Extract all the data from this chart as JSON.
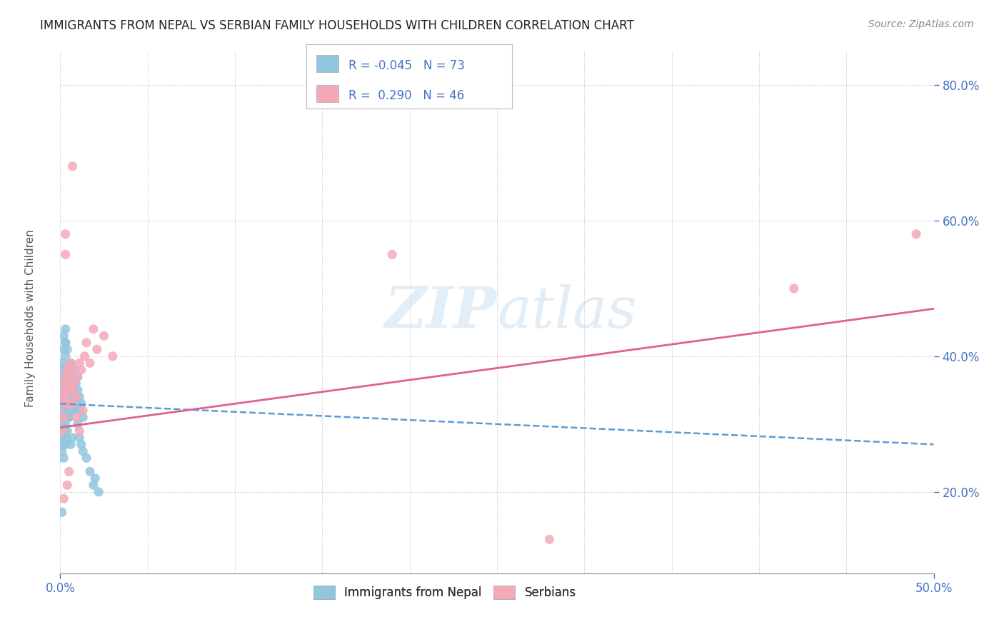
{
  "title": "IMMIGRANTS FROM NEPAL VS SERBIAN FAMILY HOUSEHOLDS WITH CHILDREN CORRELATION CHART",
  "source": "Source: ZipAtlas.com",
  "ylabel": "Family Households with Children",
  "xlim": [
    0.0,
    0.5
  ],
  "ylim": [
    0.08,
    0.85
  ],
  "x_tick_positions": [
    0.0,
    0.5
  ],
  "x_tick_labels": [
    "0.0%",
    "50.0%"
  ],
  "y_tick_positions": [
    0.2,
    0.4,
    0.6,
    0.8
  ],
  "y_tick_labels": [
    "20.0%",
    "40.0%",
    "60.0%",
    "80.0%"
  ],
  "nepal_color": "#92c5de",
  "serbia_color": "#f4a9b8",
  "nepal_line_color": "#5b9bd5",
  "serbia_line_color": "#e06090",
  "background_color": "#ffffff",
  "R_nepal": -0.045,
  "N_nepal": 73,
  "R_serbia": 0.29,
  "N_serbia": 46,
  "nepal_line_y0": 0.33,
  "nepal_line_y1": 0.27,
  "serbia_line_y0": 0.295,
  "serbia_line_y1": 0.47,
  "nepal_x": [
    0.001,
    0.001,
    0.001,
    0.001,
    0.001,
    0.002,
    0.002,
    0.002,
    0.002,
    0.002,
    0.002,
    0.003,
    0.003,
    0.003,
    0.003,
    0.003,
    0.004,
    0.004,
    0.004,
    0.004,
    0.005,
    0.005,
    0.005,
    0.005,
    0.006,
    0.006,
    0.006,
    0.007,
    0.007,
    0.008,
    0.008,
    0.008,
    0.009,
    0.009,
    0.01,
    0.01,
    0.011,
    0.011,
    0.012,
    0.013,
    0.001,
    0.001,
    0.002,
    0.002,
    0.003,
    0.003,
    0.004,
    0.005,
    0.006,
    0.007,
    0.001,
    0.002,
    0.002,
    0.003,
    0.003,
    0.004,
    0.005,
    0.006,
    0.007,
    0.008,
    0.009,
    0.01,
    0.011,
    0.012,
    0.013,
    0.015,
    0.017,
    0.019,
    0.02,
    0.022,
    0.001,
    0.002,
    0.003
  ],
  "nepal_y": [
    0.33,
    0.35,
    0.31,
    0.37,
    0.3,
    0.34,
    0.38,
    0.32,
    0.36,
    0.29,
    0.31,
    0.37,
    0.42,
    0.44,
    0.33,
    0.35,
    0.38,
    0.34,
    0.32,
    0.36,
    0.35,
    0.33,
    0.37,
    0.31,
    0.36,
    0.34,
    0.39,
    0.33,
    0.35,
    0.38,
    0.34,
    0.32,
    0.36,
    0.33,
    0.35,
    0.37,
    0.34,
    0.32,
    0.33,
    0.31,
    0.28,
    0.26,
    0.29,
    0.27,
    0.3,
    0.28,
    0.29,
    0.31,
    0.27,
    0.28,
    0.39,
    0.41,
    0.43,
    0.42,
    0.4,
    0.41,
    0.38,
    0.37,
    0.36,
    0.35,
    0.32,
    0.3,
    0.28,
    0.27,
    0.26,
    0.25,
    0.23,
    0.21,
    0.22,
    0.2,
    0.17,
    0.25,
    0.27
  ],
  "serbia_x": [
    0.001,
    0.001,
    0.002,
    0.002,
    0.003,
    0.003,
    0.004,
    0.004,
    0.005,
    0.005,
    0.006,
    0.006,
    0.007,
    0.007,
    0.008,
    0.009,
    0.01,
    0.011,
    0.012,
    0.014,
    0.001,
    0.002,
    0.003,
    0.004,
    0.005,
    0.006,
    0.007,
    0.009,
    0.011,
    0.013,
    0.015,
    0.017,
    0.019,
    0.021,
    0.025,
    0.003,
    0.003,
    0.004,
    0.005,
    0.002,
    0.19,
    0.28,
    0.42,
    0.49,
    0.007,
    0.03
  ],
  "serbia_y": [
    0.34,
    0.31,
    0.36,
    0.33,
    0.37,
    0.34,
    0.36,
    0.38,
    0.35,
    0.37,
    0.33,
    0.39,
    0.35,
    0.38,
    0.36,
    0.34,
    0.37,
    0.39,
    0.38,
    0.4,
    0.29,
    0.31,
    0.35,
    0.33,
    0.38,
    0.36,
    0.33,
    0.31,
    0.29,
    0.32,
    0.42,
    0.39,
    0.44,
    0.41,
    0.43,
    0.55,
    0.58,
    0.21,
    0.23,
    0.19,
    0.55,
    0.13,
    0.5,
    0.58,
    0.68,
    0.4
  ]
}
